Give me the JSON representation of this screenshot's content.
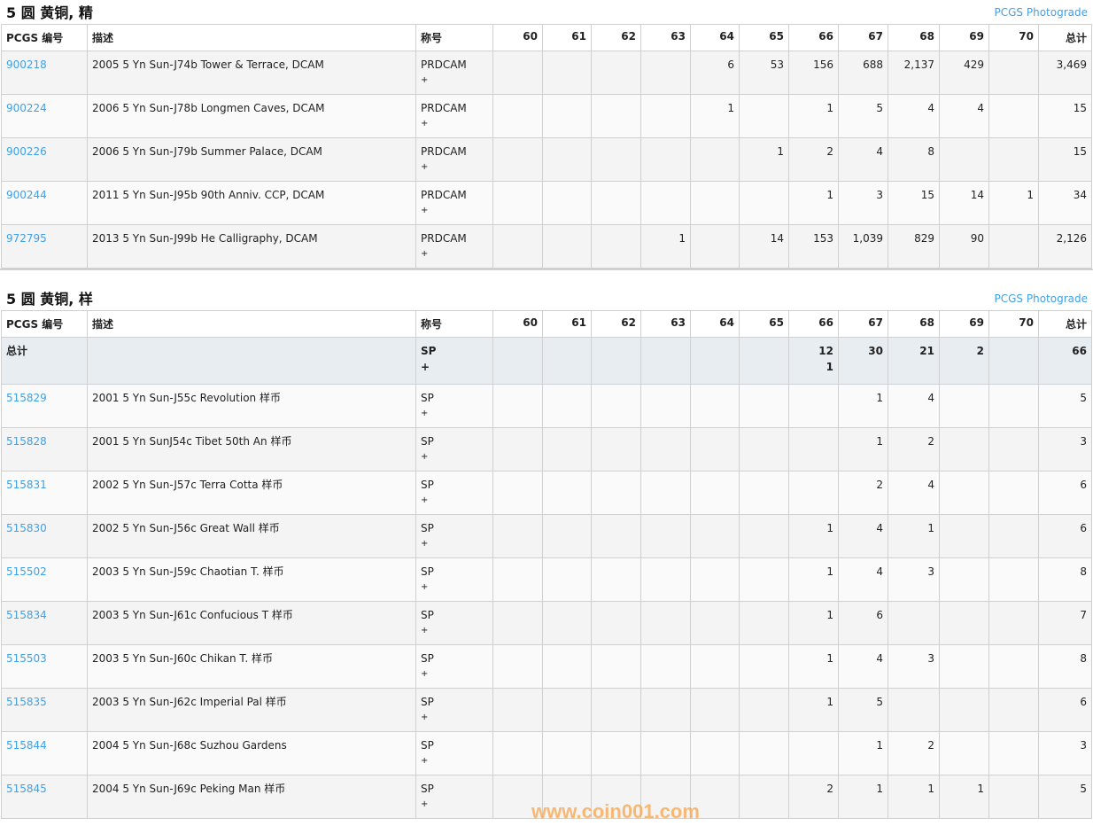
{
  "columns": [
    "PCGS 编号",
    "描述",
    "称号",
    "60",
    "61",
    "62",
    "63",
    "64",
    "65",
    "66",
    "67",
    "68",
    "69",
    "70",
    "总计"
  ],
  "sections": [
    {
      "title": "5 圆 黄铜, 精",
      "link": "PCGS Photograde",
      "total": null,
      "rows": [
        {
          "id": "900218",
          "desc": "2005 5 Yn Sun-J74b Tower & Terrace, DCAM",
          "grade": "PRDCAM",
          "plus": "+",
          "vals": [
            "",
            "",
            "",
            "",
            "6",
            "53",
            "156",
            "688",
            "2,137",
            "429",
            "",
            "3,469"
          ]
        },
        {
          "id": "900224",
          "desc": "2006 5 Yn Sun-J78b Longmen Caves, DCAM",
          "grade": "PRDCAM",
          "plus": "+",
          "vals": [
            "",
            "",
            "",
            "",
            "1",
            "",
            "1",
            "5",
            "4",
            "4",
            "",
            "15"
          ]
        },
        {
          "id": "900226",
          "desc": "2006 5 Yn Sun-J79b Summer Palace, DCAM",
          "grade": "PRDCAM",
          "plus": "+",
          "vals": [
            "",
            "",
            "",
            "",
            "",
            "1",
            "2",
            "4",
            "8",
            "",
            "",
            "15"
          ]
        },
        {
          "id": "900244",
          "desc": "2011 5 Yn Sun-J95b 90th Anniv. CCP, DCAM",
          "grade": "PRDCAM",
          "plus": "+",
          "vals": [
            "",
            "",
            "",
            "",
            "",
            "",
            "1",
            "3",
            "15",
            "14",
            "1",
            "34"
          ]
        },
        {
          "id": "972795",
          "desc": "2013 5 Yn Sun-J99b He Calligraphy, DCAM",
          "grade": "PRDCAM",
          "plus": "+",
          "vals": [
            "",
            "",
            "",
            "1",
            "",
            "14",
            "153",
            "1,039",
            "829",
            "90",
            "",
            "2,126"
          ]
        }
      ]
    },
    {
      "title": "5 圆 黄铜, 样",
      "link": "PCGS Photograde",
      "total": {
        "label": "总计",
        "grade": "SP",
        "plus": "+",
        "vals": [
          "",
          "",
          "",
          "",
          "",
          "",
          "12 1",
          "30",
          "21",
          "2",
          "",
          "66"
        ]
      },
      "rows": [
        {
          "id": "515829",
          "desc": "2001 5 Yn Sun-J55c Revolution 样币",
          "grade": "SP",
          "plus": "+",
          "vals": [
            "",
            "",
            "",
            "",
            "",
            "",
            "",
            "1",
            "4",
            "",
            "",
            "5"
          ]
        },
        {
          "id": "515828",
          "desc": "2001 5 Yn SunJ54c Tibet 50th An 样币",
          "grade": "SP",
          "plus": "+",
          "vals": [
            "",
            "",
            "",
            "",
            "",
            "",
            "",
            "1",
            "2",
            "",
            "",
            "3"
          ]
        },
        {
          "id": "515831",
          "desc": "2002 5 Yn Sun-J57c Terra Cotta 样币",
          "grade": "SP",
          "plus": "+",
          "vals": [
            "",
            "",
            "",
            "",
            "",
            "",
            "",
            "2",
            "4",
            "",
            "",
            "6"
          ]
        },
        {
          "id": "515830",
          "desc": "2002 5 Yn Sun-J56c Great Wall 样币",
          "grade": "SP",
          "plus": "+",
          "vals": [
            "",
            "",
            "",
            "",
            "",
            "",
            "1",
            "4",
            "1",
            "",
            "",
            "6"
          ]
        },
        {
          "id": "515502",
          "desc": "2003 5 Yn Sun-J59c Chaotian T. 样币",
          "grade": "SP",
          "plus": "+",
          "vals": [
            "",
            "",
            "",
            "",
            "",
            "",
            "1",
            "4",
            "3",
            "",
            "",
            "8"
          ]
        },
        {
          "id": "515834",
          "desc": "2003 5 Yn Sun-J61c Confucious T 样币",
          "grade": "SP",
          "plus": "+",
          "vals": [
            "",
            "",
            "",
            "",
            "",
            "",
            "1",
            "6",
            "",
            "",
            "",
            "7"
          ]
        },
        {
          "id": "515503",
          "desc": "2003 5 Yn Sun-J60c Chikan T. 样币",
          "grade": "SP",
          "plus": "+",
          "vals": [
            "",
            "",
            "",
            "",
            "",
            "",
            "1",
            "4",
            "3",
            "",
            "",
            "8"
          ]
        },
        {
          "id": "515835",
          "desc": "2003 5 Yn Sun-J62c Imperial Pal 样币",
          "grade": "SP",
          "plus": "+",
          "vals": [
            "",
            "",
            "",
            "",
            "",
            "",
            "1",
            "5",
            "",
            "",
            "",
            "6"
          ]
        },
        {
          "id": "515844",
          "desc": "2004 5 Yn Sun-J68c Suzhou Gardens",
          "grade": "SP",
          "plus": "+",
          "vals": [
            "",
            "",
            "",
            "",
            "",
            "",
            "",
            "1",
            "2",
            "",
            "",
            "3"
          ]
        },
        {
          "id": "515845",
          "desc": "2004 5 Yn Sun-J69c Peking Man 样币",
          "grade": "SP",
          "plus": "+",
          "vals": [
            "",
            "",
            "",
            "",
            "",
            "",
            "2",
            "1",
            "1",
            "1",
            "",
            "5"
          ]
        }
      ]
    }
  ],
  "watermark": "www.coin001.com"
}
